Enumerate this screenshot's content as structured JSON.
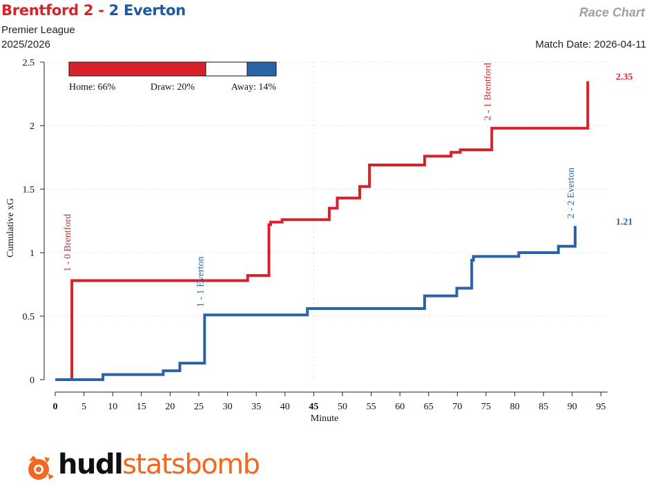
{
  "header": {
    "home_team": "Brentford",
    "home_score": "2",
    "separator": "-",
    "away_score": "2",
    "away_team": "Everton",
    "competition": "Premier League",
    "season": "2025/2026",
    "chart_name": "Race Chart",
    "match_date": "Match Date: 2026-04-11"
  },
  "probabilities": {
    "home_label": "Home: 66%",
    "draw_label": "Draw: 20%",
    "away_label": "Away: 14%",
    "home": 0.66,
    "draw": 0.2,
    "away": 0.14
  },
  "colors": {
    "home": "#d7222c",
    "away": "#2a63a8",
    "logo_accent": "#f26722"
  },
  "branding": {
    "logo_dark": "hudl",
    "logo_accent": "statsbomb"
  },
  "chart_data": {
    "type": "line",
    "step": true,
    "xlabel": "Minute",
    "ylabel": "Cumulative xG",
    "xlim": [
      0,
      96
    ],
    "ylim": [
      0,
      2.5
    ],
    "x_ticks": [
      0,
      5,
      10,
      15,
      20,
      25,
      30,
      35,
      40,
      45,
      50,
      55,
      60,
      65,
      70,
      75,
      80,
      85,
      90,
      95
    ],
    "x_ticks_bold": [
      0,
      45
    ],
    "y_ticks": [
      0,
      0.5,
      1,
      1.5,
      2,
      2.5
    ],
    "y_tick_labels": [
      "0",
      "0.5",
      "1",
      "1.5",
      "2",
      "2.5"
    ],
    "grid": true,
    "series": [
      {
        "name": "Brentford",
        "color": "#d7222c",
        "final_label": "2.35",
        "points": [
          [
            0,
            0
          ],
          [
            2.9,
            0
          ],
          [
            2.9,
            0.78
          ],
          [
            33.5,
            0.78
          ],
          [
            33.5,
            0.82
          ],
          [
            37.2,
            0.82
          ],
          [
            37.2,
            1.22
          ],
          [
            37.5,
            1.22
          ],
          [
            37.5,
            1.24
          ],
          [
            39.5,
            1.24
          ],
          [
            39.5,
            1.26
          ],
          [
            47.7,
            1.26
          ],
          [
            47.7,
            1.35
          ],
          [
            49.1,
            1.35
          ],
          [
            49.1,
            1.43
          ],
          [
            53,
            1.43
          ],
          [
            53,
            1.52
          ],
          [
            54.7,
            1.52
          ],
          [
            54.7,
            1.69
          ],
          [
            64.3,
            1.69
          ],
          [
            64.3,
            1.76
          ],
          [
            68.9,
            1.76
          ],
          [
            68.9,
            1.79
          ],
          [
            70.5,
            1.79
          ],
          [
            70.5,
            1.81
          ],
          [
            76,
            1.81
          ],
          [
            76,
            1.98
          ],
          [
            92.7,
            1.98
          ],
          [
            92.7,
            2.35
          ]
        ]
      },
      {
        "name": "Everton",
        "color": "#2a63a8",
        "final_label": "1.21",
        "points": [
          [
            0,
            0
          ],
          [
            8.3,
            0
          ],
          [
            8.3,
            0.04
          ],
          [
            18.8,
            0.04
          ],
          [
            18.8,
            0.07
          ],
          [
            21.7,
            0.07
          ],
          [
            21.7,
            0.13
          ],
          [
            26,
            0.13
          ],
          [
            26,
            0.51
          ],
          [
            43.9,
            0.51
          ],
          [
            43.9,
            0.56
          ],
          [
            64.3,
            0.56
          ],
          [
            64.3,
            0.66
          ],
          [
            69.9,
            0.66
          ],
          [
            69.9,
            0.72
          ],
          [
            72.5,
            0.72
          ],
          [
            72.5,
            0.94
          ],
          [
            72.8,
            0.94
          ],
          [
            72.8,
            0.97
          ],
          [
            80.7,
            0.97
          ],
          [
            80.7,
            1.0
          ],
          [
            87.6,
            1.0
          ],
          [
            87.6,
            1.05
          ],
          [
            90.5,
            1.05
          ],
          [
            90.5,
            1.21
          ]
        ]
      }
    ],
    "annotations": [
      {
        "text": "1 - 0 Brentford",
        "x": 2.9,
        "y": 0.85,
        "team": "home"
      },
      {
        "text": "1 - 1 Everton",
        "x": 26,
        "y": 0.57,
        "team": "away"
      },
      {
        "text": "2 - 1 Brentford",
        "x": 76,
        "y": 2.04,
        "team": "home"
      },
      {
        "text": "2 - 2 Everton",
        "x": 90.5,
        "y": 1.27,
        "team": "away"
      }
    ]
  }
}
